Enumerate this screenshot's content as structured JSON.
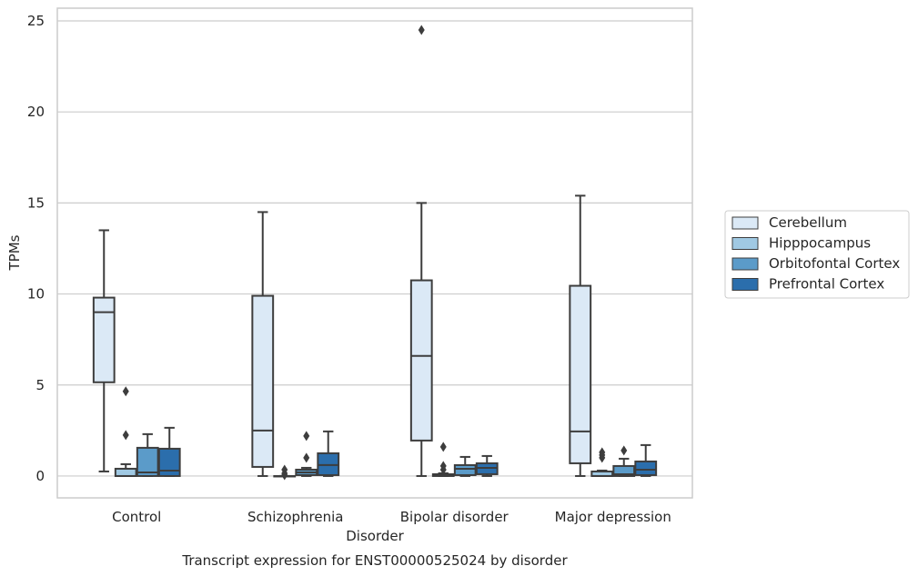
{
  "chart_data": {
    "type": "box",
    "caption": "Transcript expression for ENST00000525024 by disorder",
    "xlabel": "Disorder",
    "ylabel": "TPMs",
    "ylim": [
      -1.2,
      25.7
    ],
    "yticks": [
      0,
      5,
      10,
      15,
      20,
      25
    ],
    "grid": "horizontal",
    "legend_position": "right",
    "categories": [
      "Control",
      "Schizophrenia",
      "Bipolar disorder",
      "Major depression"
    ],
    "series": [
      {
        "name": "Cerebellum",
        "color": "#dbe9f6",
        "boxes": [
          {
            "whisker_low": 0.25,
            "q1": 5.15,
            "median": 9.0,
            "q3": 9.8,
            "whisker_high": 13.5,
            "outliers": []
          },
          {
            "whisker_low": 0.0,
            "q1": 0.5,
            "median": 2.5,
            "q3": 9.9,
            "whisker_high": 14.5,
            "outliers": []
          },
          {
            "whisker_low": 0.0,
            "q1": 1.95,
            "median": 6.6,
            "q3": 10.75,
            "whisker_high": 15.0,
            "outliers": [
              24.5
            ]
          },
          {
            "whisker_low": 0.0,
            "q1": 0.7,
            "median": 2.45,
            "q3": 10.45,
            "whisker_high": 15.4,
            "outliers": []
          }
        ]
      },
      {
        "name": "Hipppocampus",
        "color": "#a0c9e3",
        "boxes": [
          {
            "whisker_low": 0.0,
            "q1": 0.0,
            "median": 0.0,
            "q3": 0.4,
            "whisker_high": 0.65,
            "outliers": [
              2.25,
              4.65
            ]
          },
          {
            "whisker_low": 0.0,
            "q1": 0.0,
            "median": 0.0,
            "q3": 0.0,
            "whisker_high": 0.0,
            "outliers": [
              0.05,
              0.15,
              0.35
            ]
          },
          {
            "whisker_low": 0.0,
            "q1": 0.0,
            "median": 0.05,
            "q3": 0.1,
            "whisker_high": 0.15,
            "outliers": [
              0.35,
              0.55,
              1.6
            ]
          },
          {
            "whisker_low": 0.0,
            "q1": 0.0,
            "median": 0.0,
            "q3": 0.25,
            "whisker_high": 0.3,
            "outliers": [
              1.0,
              1.15,
              1.3
            ]
          }
        ]
      },
      {
        "name": "Orbitofontal Cortex",
        "color": "#5b9bc9",
        "boxes": [
          {
            "whisker_low": 0.0,
            "q1": 0.0,
            "median": 0.2,
            "q3": 1.55,
            "whisker_high": 2.3,
            "outliers": []
          },
          {
            "whisker_low": 0.0,
            "q1": 0.05,
            "median": 0.2,
            "q3": 0.35,
            "whisker_high": 0.45,
            "outliers": [
              1.0,
              2.2
            ]
          },
          {
            "whisker_low": 0.0,
            "q1": 0.05,
            "median": 0.4,
            "q3": 0.6,
            "whisker_high": 1.05,
            "outliers": []
          },
          {
            "whisker_low": 0.0,
            "q1": 0.0,
            "median": 0.1,
            "q3": 0.55,
            "whisker_high": 0.95,
            "outliers": [
              1.4
            ]
          }
        ]
      },
      {
        "name": "Prefrontal Cortex",
        "color": "#2b6eac",
        "boxes": [
          {
            "whisker_low": 0.0,
            "q1": 0.0,
            "median": 0.3,
            "q3": 1.5,
            "whisker_high": 2.65,
            "outliers": []
          },
          {
            "whisker_low": 0.0,
            "q1": 0.05,
            "median": 0.6,
            "q3": 1.25,
            "whisker_high": 2.45,
            "outliers": []
          },
          {
            "whisker_low": 0.0,
            "q1": 0.1,
            "median": 0.45,
            "q3": 0.7,
            "whisker_high": 1.1,
            "outliers": []
          },
          {
            "whisker_low": 0.0,
            "q1": 0.05,
            "median": 0.35,
            "q3": 0.8,
            "whisker_high": 1.7,
            "outliers": []
          }
        ]
      }
    ]
  }
}
